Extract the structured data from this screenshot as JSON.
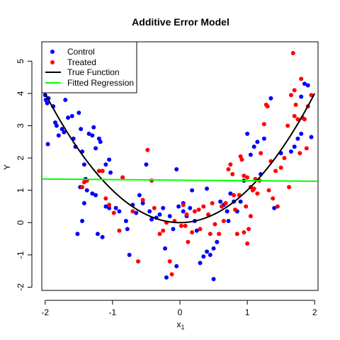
{
  "chart_data": {
    "type": "scatter",
    "title": "Additive Error Model",
    "xlabel": "x",
    "xlabel_sub": "1",
    "ylabel": "Y",
    "xlim": [
      -2.05,
      2.05
    ],
    "ylim": [
      -2.1,
      5.6
    ],
    "x_ticks": [
      -2,
      -1,
      0,
      1,
      2
    ],
    "y_ticks": [
      -2,
      -1,
      0,
      1,
      2,
      3,
      4,
      5
    ],
    "grid": false,
    "legend_position": "top-left",
    "legend": [
      {
        "label": "Control",
        "kind": "point",
        "color": "#0000ff"
      },
      {
        "label": "Treated",
        "kind": "point",
        "color": "#ff0000"
      },
      {
        "label": "True Function",
        "kind": "line",
        "color": "#000000"
      },
      {
        "label": "Fitted Regression",
        "kind": "line",
        "color": "#00ff00"
      }
    ],
    "series": [
      {
        "name": "Control",
        "color": "#0000ff",
        "points": [
          [
            -2.0,
            3.95
          ],
          [
            -1.99,
            3.8
          ],
          [
            -1.97,
            3.7
          ],
          [
            -1.95,
            3.85
          ],
          [
            -1.96,
            2.43
          ],
          [
            -1.88,
            3.6
          ],
          [
            -1.85,
            3.1
          ],
          [
            -1.83,
            3.0
          ],
          [
            -1.8,
            2.7
          ],
          [
            -1.75,
            2.9
          ],
          [
            -1.72,
            2.8
          ],
          [
            -1.7,
            3.8
          ],
          [
            -1.66,
            3.25
          ],
          [
            -1.6,
            3.3
          ],
          [
            -1.58,
            2.6
          ],
          [
            -1.55,
            2.35
          ],
          [
            -1.5,
            3.4
          ],
          [
            -1.47,
            2.9
          ],
          [
            -1.45,
            2.2
          ],
          [
            -1.42,
            1.8
          ],
          [
            -1.4,
            1.35
          ],
          [
            -1.38,
            1.0
          ],
          [
            -1.35,
            2.75
          ],
          [
            -1.3,
            2.7
          ],
          [
            -1.28,
            2.95
          ],
          [
            -1.25,
            2.3
          ],
          [
            -1.2,
            2.6
          ],
          [
            -1.18,
            2.5
          ],
          [
            -1.15,
            1.6
          ],
          [
            -1.1,
            1.8
          ],
          [
            -1.05,
            1.95
          ],
          [
            -1.03,
            1.55
          ],
          [
            -1.52,
            -0.35
          ],
          [
            -1.48,
            1.1
          ],
          [
            -1.45,
            0.05
          ],
          [
            -1.42,
            0.6
          ],
          [
            -1.3,
            0.9
          ],
          [
            -1.25,
            0.85
          ],
          [
            -1.22,
            -0.35
          ],
          [
            -1.15,
            -0.45
          ],
          [
            -1.1,
            0.5
          ],
          [
            -1.05,
            0.45
          ],
          [
            -0.95,
            0.45
          ],
          [
            -0.9,
            0.35
          ],
          [
            -0.85,
            1.4
          ],
          [
            -0.8,
            0.05
          ],
          [
            -0.78,
            -0.2
          ],
          [
            -0.75,
            -1.0
          ],
          [
            -0.7,
            0.55
          ],
          [
            -0.65,
            0.3
          ],
          [
            -0.6,
            0.85
          ],
          [
            -0.55,
            0.6
          ],
          [
            -0.5,
            1.8
          ],
          [
            -0.45,
            0.35
          ],
          [
            -0.42,
            0.1
          ],
          [
            -0.35,
            0.15
          ],
          [
            -0.3,
            0.25
          ],
          [
            -0.25,
            0.45
          ],
          [
            -0.22,
            -0.8
          ],
          [
            -0.15,
            0.2
          ],
          [
            -0.1,
            -0.2
          ],
          [
            -0.05,
            1.65
          ],
          [
            -0.02,
            0.5
          ],
          [
            0.05,
            0.6
          ],
          [
            0.1,
            0.2
          ],
          [
            0.15,
            0.45
          ],
          [
            0.18,
            1.0
          ],
          [
            0.22,
            0.05
          ],
          [
            0.25,
            -0.25
          ],
          [
            0.3,
            -1.25
          ],
          [
            0.35,
            -1.05
          ],
          [
            0.4,
            -0.9
          ],
          [
            0.45,
            -1.0
          ],
          [
            0.5,
            -0.8
          ],
          [
            0.55,
            -0.6
          ],
          [
            0.6,
            0.65
          ],
          [
            0.65,
            0.55
          ],
          [
            0.7,
            0.35
          ],
          [
            0.72,
            0.05
          ],
          [
            0.75,
            0.9
          ],
          [
            0.8,
            0.65
          ],
          [
            0.85,
            0.35
          ],
          [
            0.9,
            0.65
          ],
          [
            0.95,
            1.3
          ],
          [
            1.0,
            2.75
          ],
          [
            1.05,
            2.1
          ],
          [
            1.1,
            2.35
          ],
          [
            1.15,
            2.5
          ],
          [
            1.2,
            1.5
          ],
          [
            1.25,
            2.6
          ],
          [
            1.35,
            3.85
          ],
          [
            1.4,
            0.45
          ],
          [
            1.5,
            2.15
          ],
          [
            1.65,
            2.2
          ],
          [
            1.7,
            2.35
          ],
          [
            1.75,
            2.6
          ],
          [
            1.8,
            2.75
          ],
          [
            1.85,
            4.3
          ],
          [
            1.9,
            4.25
          ],
          [
            1.95,
            2.65
          ],
          [
            1.8,
            3.9
          ],
          [
            0.5,
            -1.75
          ],
          [
            -0.05,
            -1.35
          ],
          [
            0.4,
            1.05
          ],
          [
            -0.2,
            -1.7
          ],
          [
            0.05,
            0.35
          ]
        ]
      },
      {
        "name": "Treated",
        "color": "#ff0000",
        "points": [
          [
            -1.45,
            1.1
          ],
          [
            -1.42,
            1.25
          ],
          [
            -1.38,
            1.3
          ],
          [
            -1.2,
            1.6
          ],
          [
            -1.15,
            1.6
          ],
          [
            -1.1,
            0.75
          ],
          [
            -1.05,
            0.55
          ],
          [
            -0.98,
            0.3
          ],
          [
            -0.9,
            -0.25
          ],
          [
            -0.85,
            1.4
          ],
          [
            -0.7,
            0.35
          ],
          [
            -0.62,
            -1.2
          ],
          [
            -0.55,
            0.7
          ],
          [
            -0.48,
            2.25
          ],
          [
            -0.42,
            1.3
          ],
          [
            -0.38,
            0.45
          ],
          [
            -0.3,
            -0.35
          ],
          [
            -0.25,
            -0.25
          ],
          [
            -0.2,
            0.0
          ],
          [
            -0.15,
            -1.2
          ],
          [
            -0.12,
            -1.6
          ],
          [
            -0.08,
            0.05
          ],
          [
            0.02,
            -0.1
          ],
          [
            0.05,
            0.55
          ],
          [
            0.08,
            -0.1
          ],
          [
            0.12,
            -0.6
          ],
          [
            0.18,
            -0.3
          ],
          [
            0.22,
            0.35
          ],
          [
            0.28,
            0.4
          ],
          [
            0.3,
            -0.2
          ],
          [
            0.35,
            0.5
          ],
          [
            0.42,
            0.25
          ],
          [
            0.45,
            -0.35
          ],
          [
            0.48,
            0.6
          ],
          [
            0.52,
            -0.05
          ],
          [
            0.58,
            -0.35
          ],
          [
            0.62,
            0.5
          ],
          [
            0.65,
            0.05
          ],
          [
            0.68,
            0.6
          ],
          [
            0.72,
            1.65
          ],
          [
            0.75,
            1.8
          ],
          [
            0.78,
            1.5
          ],
          [
            0.8,
            0.85
          ],
          [
            0.82,
            0.4
          ],
          [
            0.85,
            -0.35
          ],
          [
            0.88,
            0.85
          ],
          [
            0.9,
            2.05
          ],
          [
            0.92,
            1.95
          ],
          [
            0.95,
            1.45
          ],
          [
            0.98,
            0.5
          ],
          [
            1.0,
            1.4
          ],
          [
            1.02,
            -0.2
          ],
          [
            1.05,
            1.1
          ],
          [
            1.08,
            1.0
          ],
          [
            1.1,
            1.05
          ],
          [
            1.12,
            1.35
          ],
          [
            1.15,
            0.9
          ],
          [
            1.18,
            1.3
          ],
          [
            1.2,
            2.15
          ],
          [
            1.25,
            3.05
          ],
          [
            1.28,
            3.65
          ],
          [
            1.3,
            3.6
          ],
          [
            1.32,
            1.0
          ],
          [
            1.35,
            1.9
          ],
          [
            1.38,
            0.75
          ],
          [
            1.42,
            1.6
          ],
          [
            1.45,
            0.5
          ],
          [
            1.5,
            1.7
          ],
          [
            1.55,
            2.0
          ],
          [
            1.6,
            3.0
          ],
          [
            1.62,
            1.1
          ],
          [
            1.65,
            3.95
          ],
          [
            1.68,
            5.25
          ],
          [
            1.7,
            4.1
          ],
          [
            1.72,
            3.65
          ],
          [
            1.75,
            3.2
          ],
          [
            1.78,
            2.15
          ],
          [
            1.8,
            4.45
          ],
          [
            1.82,
            3.25
          ],
          [
            1.85,
            3.2
          ],
          [
            1.88,
            2.3
          ],
          [
            1.9,
            3.6
          ],
          [
            1.95,
            3.95
          ],
          [
            1.7,
            3.3
          ],
          [
            1.0,
            -0.65
          ],
          [
            0.95,
            -0.3
          ],
          [
            1.05,
            0.2
          ],
          [
            0.1,
            0.25
          ]
        ]
      }
    ],
    "true_function": {
      "name": "True Function",
      "color": "#000000",
      "equation": "y = x^2",
      "x_range": [
        -2,
        2
      ]
    },
    "fitted_regression": {
      "name": "Fitted Regression",
      "color": "#00ff00",
      "points": [
        [
          -2.05,
          1.35
        ],
        [
          2.05,
          1.28
        ]
      ]
    }
  }
}
